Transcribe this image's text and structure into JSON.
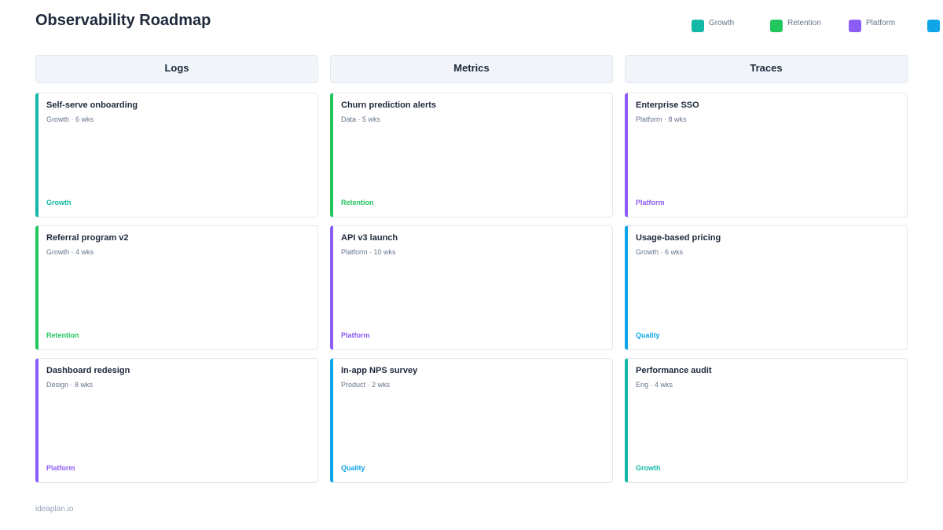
{
  "header": {
    "title": "Observability Roadmap"
  },
  "legend": [
    {
      "label": "Growth",
      "color": "#14b8a6"
    },
    {
      "label": "Retention",
      "color": "#22c55e"
    },
    {
      "label": "Platform",
      "color": "#8b5cf6"
    },
    {
      "color": "#0ea5e9"
    }
  ],
  "columns": [
    {
      "title": "Logs",
      "cards": [
        {
          "title": "Self-serve onboarding",
          "meta": "Growth · 6 wks",
          "tag": "Growth",
          "color": "#14b8a6"
        },
        {
          "title": "Referral program v2",
          "meta": "Growth · 4 wks",
          "tag": "Retention",
          "color": "#22c55e"
        },
        {
          "title": "Dashboard redesign",
          "meta": "Design · 8 wks",
          "tag": "Platform",
          "color": "#8b5cf6"
        }
      ]
    },
    {
      "title": "Metrics",
      "cards": [
        {
          "title": "Churn prediction alerts",
          "meta": "Data · 5 wks",
          "tag": "Retention",
          "color": "#22c55e"
        },
        {
          "title": "API v3 launch",
          "meta": "Platform · 10 wks",
          "tag": "Platform",
          "color": "#8b5cf6"
        },
        {
          "title": "In-app NPS survey",
          "meta": "Product · 2 wks",
          "tag": "Quality",
          "color": "#0ea5e9"
        }
      ]
    },
    {
      "title": "Traces",
      "cards": [
        {
          "title": "Enterprise SSO",
          "meta": "Platform · 8 wks",
          "tag": "Platform",
          "color": "#8b5cf6"
        },
        {
          "title": "Usage-based pricing",
          "meta": "Growth · 6 wks",
          "tag": "Quality",
          "color": "#0ea5e9"
        },
        {
          "title": "Performance audit",
          "meta": "Eng · 4 wks",
          "tag": "Growth",
          "color": "#14b8a6"
        }
      ]
    }
  ],
  "footer": {
    "text": "ideaplan.io"
  }
}
